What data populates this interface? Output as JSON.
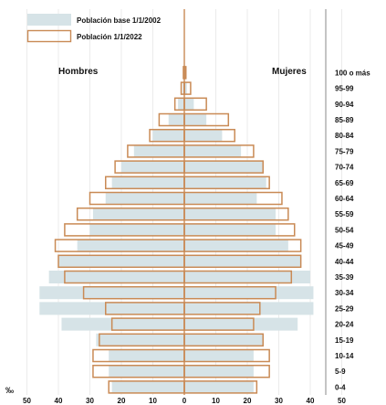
{
  "chart_data": {
    "type": "bar",
    "orientation": "horizontal",
    "subtype": "population-pyramid",
    "title": "",
    "xlabel": "%",
    "x_unit_label": "‰",
    "xlim": [
      -50,
      50
    ],
    "x_ticks": [
      50,
      40,
      30,
      20,
      10,
      0,
      10,
      20,
      30,
      40,
      50
    ],
    "left_label": "Hombres",
    "right_label": "Mujeres",
    "legend": [
      "Población base 1/1/2002",
      "Población 1/1/2022"
    ],
    "legend_placement": "top-left",
    "colors": {
      "base": "#d6e3e7",
      "current_outline": "#c98a55"
    },
    "age_groups": [
      "0-4",
      "5-9",
      "10-14",
      "15-19",
      "20-24",
      "25-29",
      "30-34",
      "35-39",
      "40-44",
      "45-49",
      "50-54",
      "55-59",
      "60-64",
      "65-69",
      "70-74",
      "75-79",
      "80-84",
      "85-89",
      "90-94",
      "95-99",
      "100 o más"
    ],
    "series": [
      {
        "name": "Población base 1/1/2002",
        "style": "filled",
        "hombres": [
          23,
          24,
          24,
          28,
          39,
          46,
          46,
          43,
          40,
          34,
          30,
          29,
          25,
          23,
          20,
          16,
          10,
          5,
          2,
          0.5,
          0.2
        ],
        "mujeres": [
          22,
          22,
          22,
          25,
          36,
          41,
          41,
          40,
          37,
          33,
          29,
          29,
          23,
          26,
          25,
          18,
          12,
          7,
          3,
          0.8,
          0.3
        ]
      },
      {
        "name": "Población 1/1/2022",
        "style": "outline",
        "hombres": [
          24,
          29,
          29,
          27,
          23,
          25,
          32,
          38,
          40,
          41,
          38,
          34,
          30,
          25,
          22,
          18,
          11,
          8,
          3,
          1,
          0.3
        ],
        "mujeres": [
          23,
          27,
          27,
          25,
          22,
          24,
          29,
          34,
          37,
          37,
          35,
          33,
          31,
          27,
          25,
          22,
          16,
          14,
          7,
          2,
          0.5
        ]
      }
    ]
  }
}
